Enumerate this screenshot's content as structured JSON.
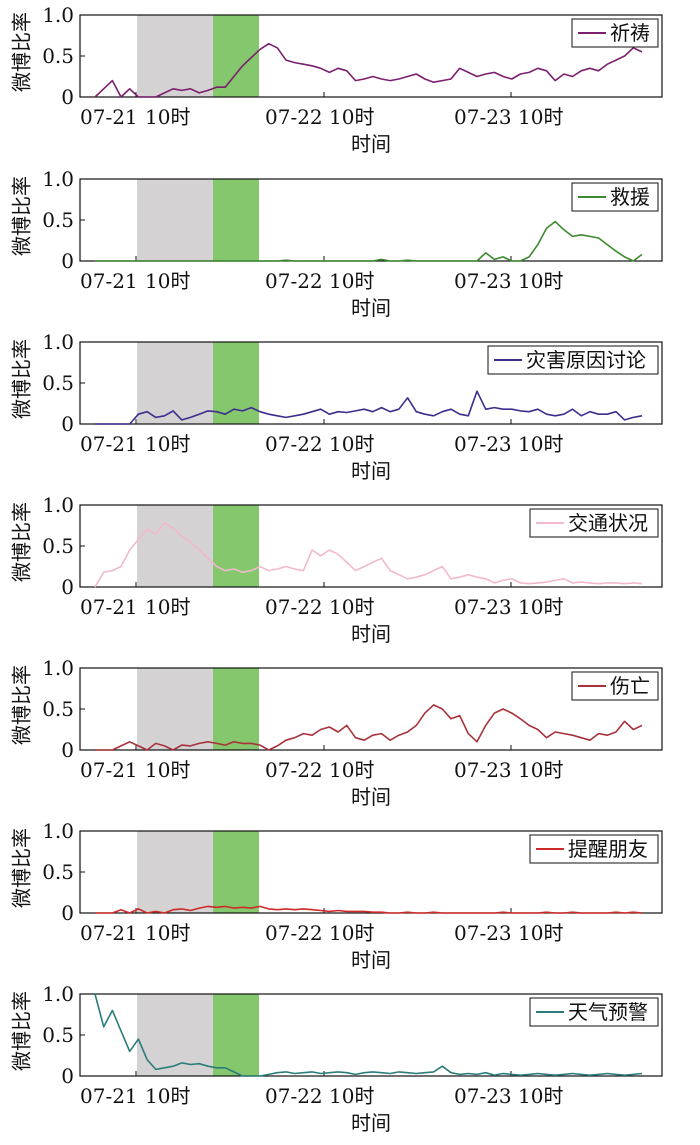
{
  "chart_data": [
    {
      "type": "line",
      "xlabel": "时间",
      "ylabel": "微博比率",
      "ylim": [
        0,
        1
      ],
      "yticks": [
        "0",
        "0.5",
        "1.0"
      ],
      "xticks": [
        "07-21",
        "10时",
        "07-22 10时",
        "07-23 10时"
      ],
      "series": [
        {
          "name": "祈祷",
          "color": "#7b1f6e",
          "values": [
            0,
            0.1,
            0.2,
            0,
            0.1,
            0,
            0,
            0,
            0.05,
            0.1,
            0.08,
            0.1,
            0.05,
            0.08,
            0.12,
            0.12,
            0.25,
            0.38,
            0.48,
            0.58,
            0.65,
            0.6,
            0.45,
            0.42,
            0.4,
            0.38,
            0.35,
            0.3,
            0.35,
            0.32,
            0.2,
            0.22,
            0.25,
            0.22,
            0.2,
            0.22,
            0.25,
            0.28,
            0.22,
            0.18,
            0.2,
            0.22,
            0.35,
            0.3,
            0.25,
            0.28,
            0.3,
            0.25,
            0.22,
            0.28,
            0.3,
            0.35,
            0.32,
            0.2,
            0.28,
            0.25,
            0.32,
            0.35,
            0.32,
            0.4,
            0.45,
            0.5,
            0.6,
            0.55
          ]
        }
      ]
    },
    {
      "type": "line",
      "xlabel": "时间",
      "ylabel": "微博比率",
      "ylim": [
        0,
        1
      ],
      "yticks": [
        "0",
        "0.5",
        "1.0"
      ],
      "xticks": [
        "07-21",
        "10时",
        "07-22 10时",
        "07-23 10时"
      ],
      "series": [
        {
          "name": "救援",
          "color": "#3c8a2e",
          "values": [
            0,
            0,
            0,
            0,
            0,
            0,
            0,
            0,
            0,
            0,
            0,
            0,
            0,
            0,
            0,
            0,
            0,
            0,
            0,
            0,
            0,
            0,
            0.01,
            0,
            0,
            0,
            0,
            0,
            0,
            0,
            0,
            0,
            0,
            0.02,
            0,
            0,
            0.01,
            0,
            0,
            0,
            0,
            0,
            0,
            0,
            0,
            0.1,
            0.02,
            0.05,
            0,
            0,
            0.05,
            0.2,
            0.4,
            0.48,
            0.38,
            0.3,
            0.32,
            0.3,
            0.28,
            0.2,
            0.12,
            0.05,
            0,
            0.08
          ]
        }
      ]
    },
    {
      "type": "line",
      "xlabel": "时间",
      "ylabel": "微博比率",
      "ylim": [
        0,
        1
      ],
      "yticks": [
        "0",
        "0.5",
        "1.0"
      ],
      "xticks": [
        "07-21",
        "10时",
        "07-22 10时",
        "07-23 10时"
      ],
      "series": [
        {
          "name": "灾害原因讨论",
          "color": "#3b2e8c",
          "values": [
            0,
            0,
            0,
            0,
            0,
            0.12,
            0.15,
            0.08,
            0.1,
            0.16,
            0.05,
            0.08,
            0.12,
            0.16,
            0.15,
            0.12,
            0.18,
            0.16,
            0.2,
            0.15,
            0.12,
            0.1,
            0.08,
            0.1,
            0.12,
            0.15,
            0.18,
            0.12,
            0.15,
            0.14,
            0.16,
            0.18,
            0.15,
            0.2,
            0.15,
            0.18,
            0.32,
            0.15,
            0.12,
            0.1,
            0.15,
            0.18,
            0.12,
            0.1,
            0.4,
            0.18,
            0.2,
            0.18,
            0.18,
            0.16,
            0.15,
            0.18,
            0.12,
            0.1,
            0.12,
            0.18,
            0.1,
            0.15,
            0.12,
            0.12,
            0.15,
            0.05,
            0.08,
            0.1
          ]
        }
      ]
    },
    {
      "type": "line",
      "xlabel": "时间",
      "ylabel": "微博比率",
      "ylim": [
        0,
        1
      ],
      "yticks": [
        "0",
        "0.5",
        "1.0"
      ],
      "xticks": [
        "07-21",
        "10时",
        "07-22 10时",
        "07-23 10时"
      ],
      "series": [
        {
          "name": "交通状况",
          "color": "#f2b8cf",
          "values": [
            0,
            0.18,
            0.2,
            0.25,
            0.45,
            0.58,
            0.7,
            0.65,
            0.78,
            0.72,
            0.62,
            0.55,
            0.45,
            0.35,
            0.25,
            0.2,
            0.22,
            0.18,
            0.2,
            0.25,
            0.2,
            0.22,
            0.25,
            0.22,
            0.2,
            0.45,
            0.38,
            0.45,
            0.4,
            0.3,
            0.2,
            0.25,
            0.3,
            0.35,
            0.2,
            0.15,
            0.1,
            0.12,
            0.15,
            0.2,
            0.25,
            0.1,
            0.12,
            0.15,
            0.12,
            0.1,
            0.05,
            0.08,
            0.1,
            0.05,
            0.04,
            0.05,
            0.06,
            0.08,
            0.1,
            0.05,
            0.06,
            0.05,
            0.04,
            0.05,
            0.05,
            0.04,
            0.05,
            0.04
          ]
        }
      ]
    },
    {
      "type": "line",
      "xlabel": "时间",
      "ylabel": "微博比率",
      "ylim": [
        0,
        1
      ],
      "yticks": [
        "0",
        "0.5",
        "1.0"
      ],
      "xticks": [
        "07-21",
        "10时",
        "07-22 10时",
        "07-23 10时"
      ],
      "series": [
        {
          "name": "伤亡",
          "color": "#a8323c",
          "values": [
            0,
            0,
            0,
            0.05,
            0.1,
            0.05,
            0,
            0.08,
            0.05,
            0,
            0.06,
            0.05,
            0.08,
            0.1,
            0.08,
            0.06,
            0.1,
            0.08,
            0.08,
            0.06,
            0,
            0.05,
            0.12,
            0.15,
            0.2,
            0.18,
            0.25,
            0.28,
            0.22,
            0.3,
            0.15,
            0.12,
            0.18,
            0.2,
            0.12,
            0.18,
            0.22,
            0.3,
            0.45,
            0.55,
            0.5,
            0.38,
            0.42,
            0.2,
            0.1,
            0.3,
            0.45,
            0.5,
            0.45,
            0.38,
            0.3,
            0.25,
            0.15,
            0.22,
            0.2,
            0.18,
            0.15,
            0.12,
            0.2,
            0.18,
            0.22,
            0.35,
            0.25,
            0.3
          ]
        }
      ]
    },
    {
      "type": "line",
      "xlabel": "时间",
      "ylabel": "微博比率",
      "ylim": [
        0,
        1
      ],
      "yticks": [
        "0",
        "0.5",
        "1.0"
      ],
      "xticks": [
        "07-21",
        "10时",
        "07-22 10时",
        "07-23 10时"
      ],
      "series": [
        {
          "name": "提醒朋友",
          "color": "#cf2a2a",
          "values": [
            0,
            0,
            0,
            0.04,
            0,
            0.05,
            0,
            0.02,
            0,
            0.04,
            0.05,
            0.03,
            0.06,
            0.08,
            0.07,
            0.08,
            0.06,
            0.07,
            0.06,
            0.08,
            0.05,
            0.04,
            0.05,
            0.04,
            0.05,
            0.04,
            0.03,
            0.02,
            0.03,
            0.02,
            0.02,
            0.02,
            0.01,
            0.01,
            0,
            0,
            0.01,
            0,
            0,
            0.01,
            0,
            0,
            0,
            0,
            0,
            0,
            0,
            0.01,
            0,
            0,
            0,
            0,
            0.01,
            0,
            0,
            0.01,
            0,
            0,
            0,
            0,
            0.01,
            0,
            0.01,
            0
          ]
        }
      ]
    },
    {
      "type": "line",
      "xlabel": "时间",
      "ylabel": "微博比率",
      "ylim": [
        0,
        1
      ],
      "yticks": [
        "0",
        "0.5",
        "1.0"
      ],
      "xticks": [
        "07-21",
        "10时",
        "07-22 10时",
        "07-23 10时"
      ],
      "series": [
        {
          "name": "天气预警",
          "color": "#2a7d7a",
          "values": [
            1.0,
            0.6,
            0.8,
            0.55,
            0.3,
            0.45,
            0.2,
            0.08,
            0.1,
            0.12,
            0.16,
            0.14,
            0.15,
            0.12,
            0.1,
            0.1,
            0.05,
            0,
            0,
            0,
            0.02,
            0.04,
            0.05,
            0.03,
            0.04,
            0.05,
            0.03,
            0.04,
            0.05,
            0.04,
            0.02,
            0.04,
            0.05,
            0.04,
            0.03,
            0.05,
            0.04,
            0.03,
            0.04,
            0.05,
            0.12,
            0.04,
            0.02,
            0.03,
            0.02,
            0.04,
            0.01,
            0.03,
            0.02,
            0.01,
            0.02,
            0.03,
            0.02,
            0.01,
            0.02,
            0.03,
            0.02,
            0.01,
            0.02,
            0.03,
            0.02,
            0.01,
            0.02,
            0.03
          ]
        }
      ]
    }
  ]
}
